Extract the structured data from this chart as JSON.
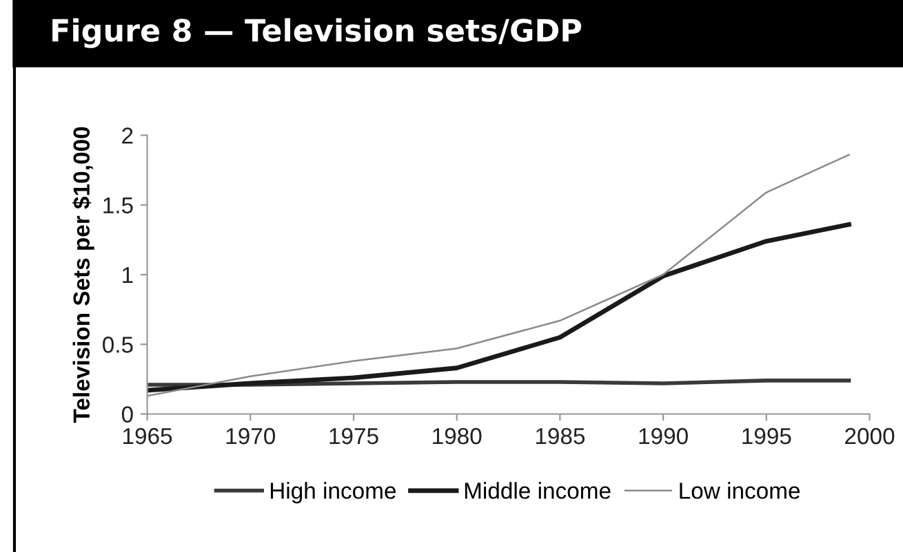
{
  "chart_data": {
    "type": "line",
    "title": "Figure 8 — Television sets/GDP",
    "ylabel": "Television Sets per $10,000",
    "x": [
      1965,
      1970,
      1975,
      1980,
      1985,
      1990,
      1995,
      1999
    ],
    "series": [
      {
        "name": "High income",
        "color": "#3a3a3a",
        "values": [
          0.21,
          0.21,
          0.22,
          0.23,
          0.23,
          0.22,
          0.24,
          0.24
        ]
      },
      {
        "name": "Middle income",
        "color": "#1a1a1a",
        "values": [
          0.17,
          0.22,
          0.26,
          0.33,
          0.55,
          0.99,
          1.24,
          1.36
        ]
      },
      {
        "name": "Low income",
        "color": "#8a8a8a",
        "values": [
          0.13,
          0.27,
          0.38,
          0.47,
          0.67,
          1.0,
          1.59,
          1.86
        ]
      }
    ],
    "xlim": [
      1965,
      2000
    ],
    "xticks": [
      1965,
      1970,
      1975,
      1980,
      1985,
      1990,
      1995,
      2000
    ],
    "ylim": [
      0,
      2
    ],
    "yticks": [
      0,
      0.5,
      1,
      1.5,
      2
    ],
    "grid": false,
    "legend": "bottom",
    "marker": "none",
    "line_style": "solid"
  }
}
